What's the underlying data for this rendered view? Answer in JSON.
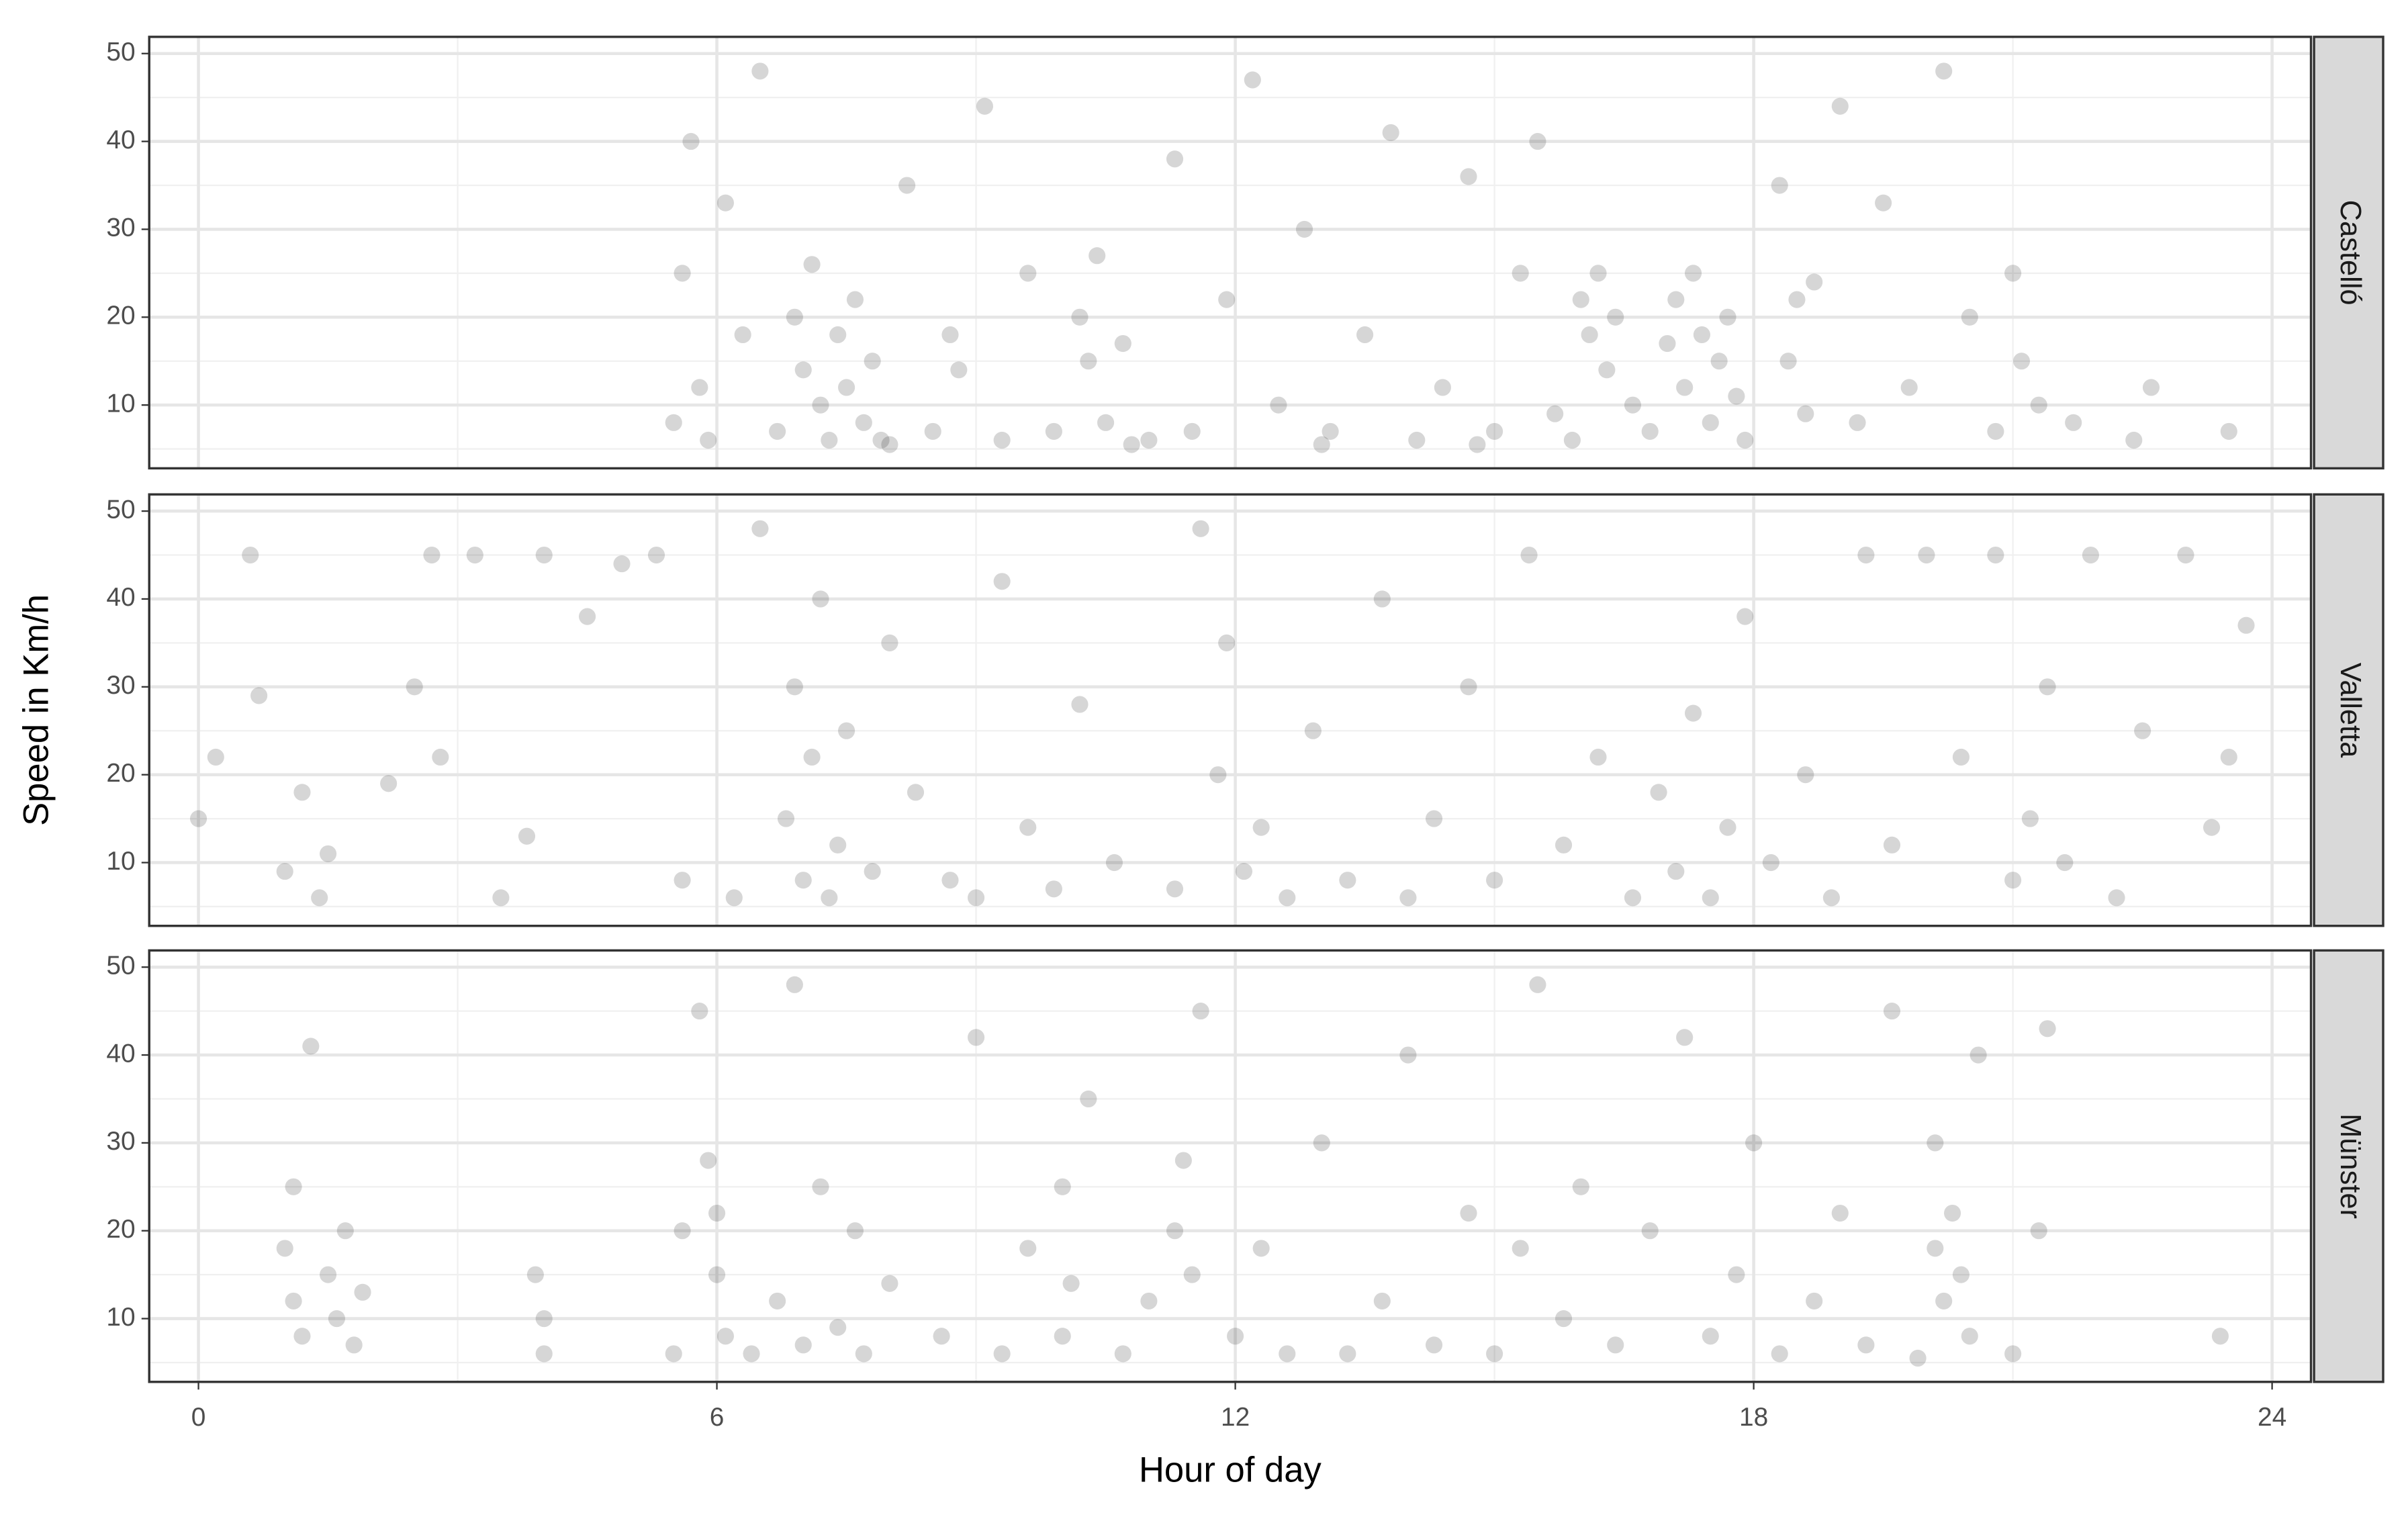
{
  "chart_data": [
    {
      "type": "scatter",
      "facet": "Castelló",
      "color": "#000000",
      "opacity": 0.16,
      "xlim": [
        -0.57,
        24.45
      ],
      "xticks": [
        0,
        6,
        12,
        18,
        24
      ],
      "x_minor_ticks": [
        3,
        9,
        15,
        21
      ],
      "ylim": [
        2.8,
        51.9
      ],
      "yticks": [
        10,
        20,
        30,
        40,
        50
      ],
      "y_minor_ticks": [
        5,
        15,
        25,
        35,
        45
      ],
      "grid": true,
      "x": [
        5.5,
        5.6,
        5.7,
        5.8,
        5.9,
        6.1,
        6.3,
        6.5,
        6.7,
        6.9,
        7.0,
        7.1,
        7.2,
        7.3,
        7.4,
        7.5,
        7.6,
        7.7,
        7.8,
        7.9,
        8.2,
        8.5,
        8.7,
        8.8,
        9.1,
        9.3,
        9.6,
        9.9,
        10.2,
        10.3,
        10.4,
        10.5,
        10.7,
        11.0,
        11.3,
        11.5,
        11.9,
        12.2,
        12.5,
        12.8,
        13.1,
        13.5,
        13.8,
        14.1,
        14.4,
        14.7,
        15.0,
        15.3,
        15.5,
        15.7,
        15.9,
        16.0,
        16.1,
        16.2,
        16.3,
        16.4,
        16.6,
        16.8,
        17.0,
        17.1,
        17.2,
        17.3,
        17.4,
        17.5,
        17.6,
        17.7,
        17.8,
        17.9,
        18.3,
        18.4,
        18.5,
        18.6,
        18.7,
        19.0,
        19.2,
        19.5,
        19.8,
        20.2,
        20.5,
        20.8,
        21.0,
        21.1,
        21.3,
        21.7,
        22.4,
        22.6,
        23.5,
        10.8,
        8.0,
        13.0,
        14.8
      ],
      "values": [
        8,
        25,
        40,
        12,
        6,
        33,
        18,
        48,
        7,
        20,
        14,
        26,
        10,
        6,
        18,
        12,
        22,
        8,
        15,
        6,
        35,
        7,
        18,
        14,
        44,
        6,
        25,
        7,
        20,
        15,
        27,
        8,
        17,
        6,
        38,
        7,
        22,
        47,
        10,
        30,
        7,
        18,
        41,
        6,
        12,
        36,
        7,
        25,
        40,
        9,
        6,
        22,
        18,
        25,
        14,
        20,
        10,
        7,
        17,
        22,
        12,
        25,
        18,
        8,
        15,
        20,
        11,
        6,
        35,
        15,
        22,
        9,
        24,
        44,
        8,
        33,
        12,
        48,
        20,
        7,
        25,
        15,
        10,
        8,
        6,
        12,
        7,
        5.5,
        5.5,
        5.5,
        5.5
      ]
    },
    {
      "type": "scatter",
      "facet": "Valletta",
      "ylabel": "Speed in Km/h",
      "color": "#000000",
      "opacity": 0.16,
      "xlim": [
        -0.57,
        24.45
      ],
      "xticks": [
        0,
        6,
        12,
        18,
        24
      ],
      "x_minor_ticks": [
        3,
        9,
        15,
        21
      ],
      "ylim": [
        2.8,
        51.9
      ],
      "yticks": [
        10,
        20,
        30,
        40,
        50
      ],
      "y_minor_ticks": [
        5,
        15,
        25,
        35,
        45
      ],
      "grid": true,
      "x": [
        0,
        0.2,
        0.6,
        0.7,
        1.0,
        1.2,
        1.4,
        1.5,
        2.2,
        2.5,
        2.7,
        2.8,
        3.2,
        3.5,
        3.8,
        4.0,
        4.5,
        4.9,
        5.3,
        5.6,
        6.2,
        6.5,
        6.8,
        6.9,
        7.0,
        7.1,
        7.2,
        7.3,
        7.4,
        7.5,
        7.8,
        8.0,
        8.3,
        8.7,
        9.0,
        9.3,
        9.6,
        9.9,
        10.2,
        10.6,
        11.3,
        11.6,
        11.8,
        11.9,
        12.1,
        12.3,
        12.6,
        12.9,
        13.3,
        13.7,
        14.0,
        14.3,
        14.7,
        15.0,
        15.4,
        15.8,
        16.2,
        16.6,
        16.9,
        17.1,
        17.3,
        17.5,
        17.7,
        17.9,
        18.2,
        18.6,
        18.9,
        19.3,
        19.6,
        20.0,
        20.4,
        20.8,
        21.0,
        21.2,
        21.4,
        21.6,
        21.9,
        22.2,
        22.5,
        23.0,
        23.3,
        23.7,
        23.5
      ],
      "values": [
        15,
        22,
        45,
        29,
        9,
        18,
        6,
        11,
        19,
        30,
        45,
        22,
        45,
        6,
        13,
        45,
        38,
        44,
        45,
        8,
        6,
        48,
        15,
        30,
        8,
        22,
        40,
        6,
        12,
        25,
        9,
        35,
        18,
        8,
        6,
        42,
        14,
        7,
        28,
        10,
        7,
        48,
        20,
        35,
        9,
        14,
        6,
        25,
        8,
        40,
        6,
        15,
        30,
        8,
        45,
        12,
        22,
        6,
        18,
        9,
        27,
        6,
        14,
        38,
        10,
        20,
        6,
        45,
        12,
        45,
        22,
        45,
        8,
        15,
        30,
        10,
        45,
        6,
        25,
        45,
        14,
        37,
        22
      ]
    },
    {
      "type": "scatter",
      "facet": "Münster",
      "xlabel": "Hour of day",
      "color": "#000000",
      "opacity": 0.16,
      "xlim": [
        -0.57,
        24.45
      ],
      "xticks": [
        0,
        6,
        12,
        18,
        24
      ],
      "x_minor_ticks": [
        3,
        9,
        15,
        21
      ],
      "ylim": [
        2.8,
        51.9
      ],
      "yticks": [
        10,
        20,
        30,
        40,
        50
      ],
      "y_minor_ticks": [
        5,
        15,
        25,
        35,
        45
      ],
      "grid": true,
      "x": [
        1.0,
        1.1,
        1.1,
        1.2,
        1.3,
        1.5,
        1.6,
        1.7,
        1.8,
        1.9,
        3.9,
        4.0,
        4.0,
        5.5,
        5.6,
        5.8,
        5.9,
        6.0,
        6.0,
        6.1,
        6.4,
        6.7,
        6.9,
        7.0,
        7.2,
        7.4,
        7.6,
        7.7,
        8.0,
        8.6,
        9.0,
        9.3,
        9.6,
        10.0,
        10.1,
        10.0,
        10.3,
        10.7,
        11.0,
        11.3,
        11.4,
        11.5,
        11.6,
        12.0,
        12.3,
        12.6,
        13.0,
        13.3,
        13.7,
        14.0,
        14.3,
        14.7,
        15.0,
        15.3,
        15.5,
        15.8,
        16.0,
        16.4,
        16.8,
        17.2,
        17.5,
        17.8,
        18.0,
        18.3,
        18.7,
        19.0,
        19.3,
        19.6,
        19.9,
        20.1,
        20.1,
        20.2,
        20.3,
        20.4,
        20.5,
        20.6,
        21.0,
        21.3,
        21.4,
        23.4
      ],
      "values": [
        18,
        25,
        12,
        8,
        41,
        15,
        10,
        20,
        7,
        13,
        15,
        6,
        10,
        6,
        20,
        45,
        28,
        15,
        22,
        8,
        6,
        12,
        48,
        7,
        25,
        9,
        20,
        6,
        14,
        8,
        42,
        6,
        18,
        25,
        14,
        8,
        35,
        6,
        12,
        20,
        28,
        15,
        45,
        8,
        18,
        6,
        30,
        6,
        12,
        40,
        7,
        22,
        6,
        18,
        48,
        10,
        25,
        7,
        20,
        42,
        8,
        15,
        30,
        6,
        12,
        22,
        7,
        45,
        5.5,
        30,
        18,
        12,
        22,
        15,
        8,
        40,
        6,
        20,
        43,
        8
      ]
    }
  ]
}
